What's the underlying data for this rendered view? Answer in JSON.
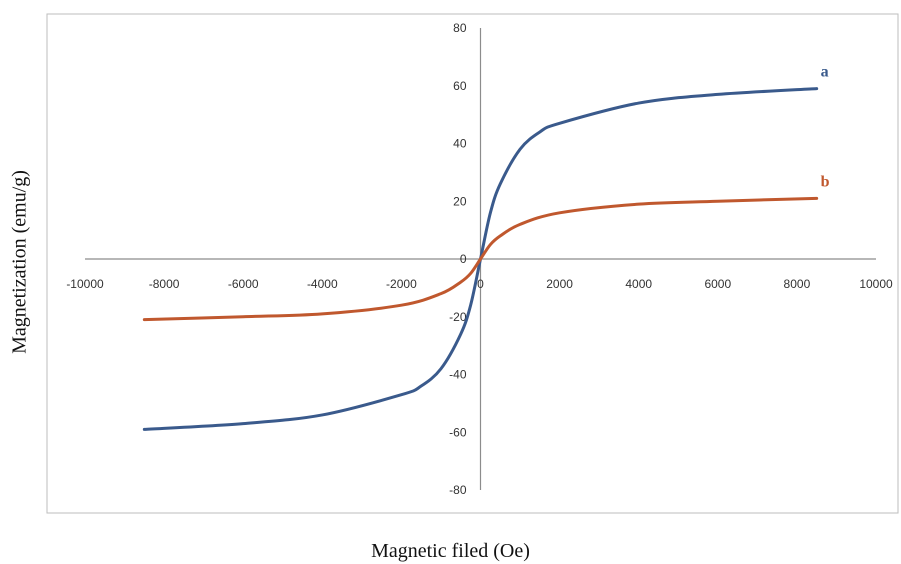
{
  "chart_data": {
    "type": "line",
    "title": "",
    "xlabel": "Magnetic filed (Oe)",
    "ylabel": "Magnetization (emu/g)",
    "xlim": [
      -10000,
      10000
    ],
    "ylim": [
      -80,
      80
    ],
    "xticks": [
      -10000,
      -8000,
      -6000,
      -4000,
      -2000,
      0,
      2000,
      4000,
      6000,
      8000,
      10000
    ],
    "yticks": [
      80,
      60,
      40,
      20,
      0,
      -20,
      -40,
      -60,
      -80
    ],
    "grid": false,
    "series": [
      {
        "name": "a",
        "color": "#3a5a8c",
        "x": [
          -8500,
          -6000,
          -4000,
          -2000,
          -1500,
          -1000,
          -500,
          -250,
          0,
          250,
          500,
          1000,
          1500,
          2000,
          4000,
          6000,
          8500
        ],
        "y": [
          -59,
          -57,
          -54,
          -47,
          -44,
          -38,
          -26,
          -16,
          0,
          16,
          26,
          38,
          44,
          47,
          54,
          57,
          59
        ]
      },
      {
        "name": "b",
        "color": "#c0582e",
        "x": [
          -8500,
          -6000,
          -4000,
          -2000,
          -1000,
          -500,
          -250,
          0,
          250,
          500,
          1000,
          2000,
          4000,
          6000,
          8500
        ],
        "y": [
          -21,
          -20,
          -19,
          -16,
          -12,
          -8,
          -5,
          0,
          5,
          8,
          12,
          16,
          19,
          20,
          21
        ]
      }
    ]
  }
}
